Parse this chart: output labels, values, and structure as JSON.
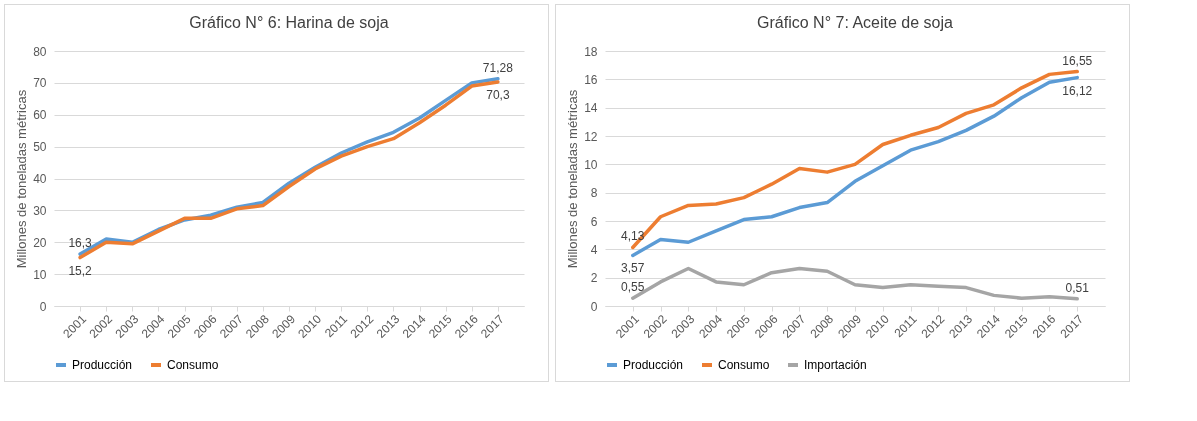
{
  "chart_data": [
    {
      "type": "line",
      "title": "Gráfico N° 6: Harina de soja",
      "ylabel": "Millones de toneladas métricas",
      "categories": [
        "2001",
        "2002",
        "2003",
        "2004",
        "2005",
        "2006",
        "2007",
        "2008",
        "2009",
        "2010",
        "2011",
        "2012",
        "2013",
        "2014",
        "2015",
        "2016",
        "2017"
      ],
      "ylim": [
        0,
        80
      ],
      "yticks": [
        0,
        10,
        20,
        30,
        40,
        50,
        60,
        70,
        80
      ],
      "grid": "y",
      "legend": "bottom",
      "line_style": "solid",
      "series": [
        {
          "name": "Producción",
          "color": "#5b9bd5",
          "values": [
            16.3,
            21,
            20,
            24,
            27,
            28.5,
            31,
            32.5,
            38.5,
            43.5,
            48,
            51.5,
            54.5,
            59,
            64.5,
            70,
            71.28
          ],
          "value_labels": [
            "16,3",
            null,
            null,
            null,
            null,
            null,
            null,
            null,
            null,
            null,
            null,
            null,
            null,
            null,
            null,
            null,
            "71,28"
          ]
        },
        {
          "name": "Consumo",
          "color": "#ed7d31",
          "values": [
            15.2,
            20,
            19.5,
            23.5,
            27.5,
            27.5,
            30.5,
            31.5,
            37.5,
            43,
            47,
            50,
            52.5,
            57.5,
            63,
            69,
            70.3
          ],
          "value_labels": [
            "15,2",
            null,
            null,
            null,
            null,
            null,
            null,
            null,
            null,
            null,
            null,
            null,
            null,
            null,
            null,
            null,
            "70,3"
          ]
        }
      ]
    },
    {
      "type": "line",
      "title": "Gráfico N° 7: Aceite de soja",
      "ylabel": "Millones de toneladas métricas",
      "categories": [
        "2001",
        "2002",
        "2003",
        "2004",
        "2005",
        "2006",
        "2007",
        "2008",
        "2009",
        "2010",
        "2011",
        "2012",
        "2013",
        "2014",
        "2015",
        "2016",
        "2017"
      ],
      "ylim": [
        0,
        18
      ],
      "yticks": [
        0,
        2,
        4,
        6,
        8,
        10,
        12,
        14,
        16,
        18
      ],
      "grid": "y",
      "legend": "bottom",
      "line_style": "solid",
      "series": [
        {
          "name": "Producción",
          "color": "#5b9bd5",
          "values": [
            3.57,
            4.7,
            4.5,
            5.3,
            6.1,
            6.3,
            6.95,
            7.3,
            8.8,
            9.9,
            11,
            11.6,
            12.4,
            13.4,
            14.7,
            15.8,
            16.12
          ],
          "value_labels": [
            "3,57",
            null,
            null,
            null,
            null,
            null,
            null,
            null,
            null,
            null,
            null,
            null,
            null,
            null,
            null,
            null,
            "16,12"
          ]
        },
        {
          "name": "Consumo",
          "color": "#ed7d31",
          "values": [
            4.13,
            6.3,
            7.1,
            7.2,
            7.65,
            8.6,
            9.7,
            9.45,
            10,
            11.4,
            12.05,
            12.6,
            13.6,
            14.2,
            15.4,
            16.35,
            16.55
          ],
          "value_labels": [
            "4,13",
            null,
            null,
            null,
            null,
            null,
            null,
            null,
            null,
            null,
            null,
            null,
            null,
            null,
            null,
            null,
            "16,55"
          ]
        },
        {
          "name": "Importación",
          "color": "#a5a5a5",
          "values": [
            0.55,
            1.7,
            2.65,
            1.7,
            1.5,
            2.35,
            2.65,
            2.45,
            1.5,
            1.3,
            1.5,
            1.4,
            1.3,
            0.75,
            0.55,
            0.65,
            0.51
          ],
          "value_labels": [
            "0,55",
            null,
            null,
            null,
            null,
            null,
            null,
            null,
            null,
            null,
            null,
            null,
            null,
            null,
            null,
            null,
            "0,51"
          ]
        }
      ]
    }
  ]
}
